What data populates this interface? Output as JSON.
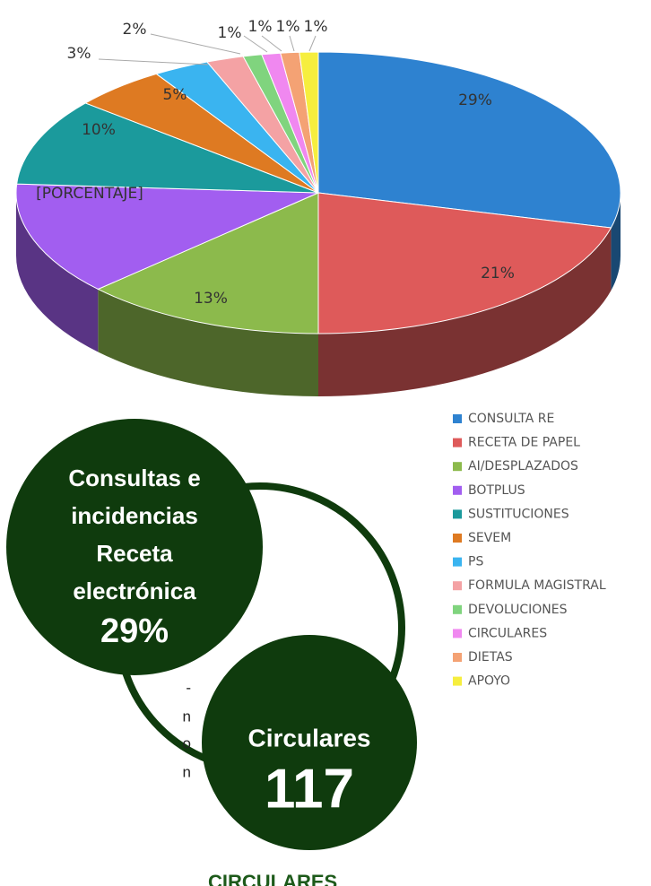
{
  "chart_data": {
    "type": "pie",
    "categories": [
      "CONSULTA RE",
      "RECETA DE PAPEL",
      "AI/DESPLAZADOS",
      "BOTPLUS",
      "SUSTITUCIONES",
      "SEVEM",
      "PS",
      "FORMULA MAGISTRAL",
      "DEVOLUCIONES",
      "CIRCULARES",
      "DIETAS",
      "APOYO"
    ],
    "values": [
      29,
      21,
      13,
      13,
      10,
      5,
      3,
      2,
      1,
      1,
      1,
      1
    ],
    "value_labels": [
      "29%",
      "21%",
      "13%",
      "[PORCENTAJE]",
      "10%",
      "5%",
      "3%",
      "2%",
      "1%",
      "1%",
      "1%",
      "1%"
    ],
    "colors": [
      "#2e82d0",
      "#de5a5a",
      "#8cba4c",
      "#a25ef0",
      "#1b9a9c",
      "#de7a22",
      "#3ab4f0",
      "#f4a2a4",
      "#80d47e",
      "#f088f0",
      "#f4a274",
      "#f6ee3e"
    ],
    "legend": "right"
  },
  "infographic": {
    "main_lines": [
      "Consultas e",
      "incidencias",
      "Receta",
      "electrónica"
    ],
    "main_value": "29%",
    "second": "Circulares",
    "second_value": "117"
  },
  "fragments": [
    "-",
    "n",
    "o",
    "n"
  ],
  "footer_heading": "CIRCULARES"
}
